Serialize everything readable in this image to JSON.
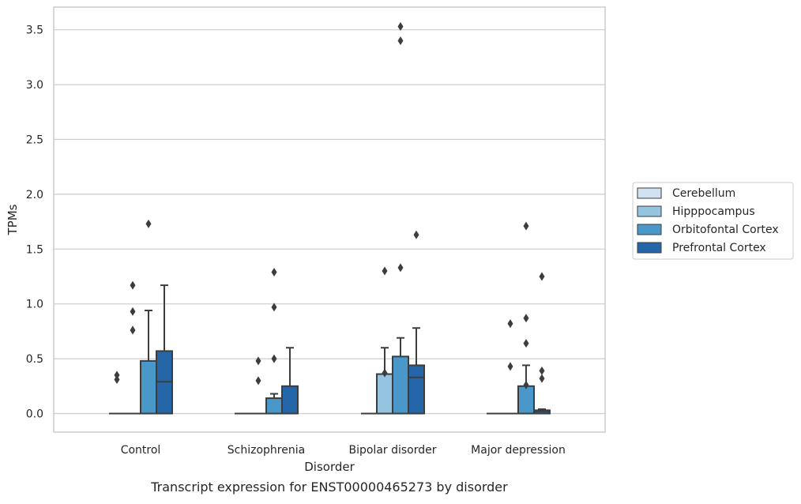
{
  "chart_data": {
    "type": "box",
    "title": "",
    "caption": "Transcript expression for ENST00000465273 by disorder",
    "xlabel": "Disorder",
    "ylabel": "TPMs",
    "ylim": [
      -0.17,
      3.72
    ],
    "yticks": [
      "0.0",
      "0.5",
      "1.0",
      "1.5",
      "2.0",
      "2.5",
      "3.0",
      "3.5"
    ],
    "grid": "horizontal",
    "legend_position": "right",
    "categories": [
      "Control",
      "Schizophrenia",
      "Bipolar disorder",
      "Major depression"
    ],
    "series": [
      {
        "name": "Cerebellum",
        "color": "#d0e1f2",
        "boxes": [
          {
            "q1": 0,
            "median": 0,
            "q3": 0,
            "whisker_low": 0,
            "whisker_high": 0,
            "outliers": [
              0.31,
              0.35
            ]
          },
          {
            "q1": 0,
            "median": 0,
            "q3": 0,
            "whisker_low": 0,
            "whisker_high": 0,
            "outliers": []
          },
          {
            "q1": 0,
            "median": 0,
            "q3": 0,
            "whisker_low": 0,
            "whisker_high": 0,
            "outliers": []
          },
          {
            "q1": 0,
            "median": 0,
            "q3": 0,
            "whisker_low": 0,
            "whisker_high": 0,
            "outliers": []
          }
        ]
      },
      {
        "name": "Hipppocampus",
        "color": "#94c4df",
        "boxes": [
          {
            "q1": 0,
            "median": 0,
            "q3": 0,
            "whisker_low": 0,
            "whisker_high": 0,
            "outliers": [
              0.76,
              0.93,
              1.17
            ]
          },
          {
            "q1": 0,
            "median": 0,
            "q3": 0,
            "whisker_low": 0,
            "whisker_high": 0,
            "outliers": [
              0.3,
              0.48
            ]
          },
          {
            "q1": 0,
            "median": 0,
            "q3": 0.36,
            "whisker_low": 0,
            "whisker_high": 0.6,
            "outliers": [
              0.37,
              1.3
            ]
          },
          {
            "q1": 0,
            "median": 0,
            "q3": 0,
            "whisker_low": 0,
            "whisker_high": 0,
            "outliers": [
              0.43,
              0.82
            ]
          }
        ]
      },
      {
        "name": "Orbitofontal Cortex",
        "color": "#4a98c9",
        "boxes": [
          {
            "q1": 0,
            "median": 0,
            "q3": 0.48,
            "whisker_low": 0,
            "whisker_high": 0.94,
            "outliers": [
              1.73
            ]
          },
          {
            "q1": 0,
            "median": 0,
            "q3": 0.14,
            "whisker_low": 0,
            "whisker_high": 0.18,
            "outliers": [
              0.5,
              0.97,
              1.29
            ]
          },
          {
            "q1": 0,
            "median": 0,
            "q3": 0.52,
            "whisker_low": 0,
            "whisker_high": 0.69,
            "outliers": [
              1.33,
              3.4,
              3.53
            ]
          },
          {
            "q1": 0,
            "median": 0,
            "q3": 0.25,
            "whisker_low": 0,
            "whisker_high": 0.44,
            "outliers": [
              0.26,
              0.64,
              0.87,
              1.71
            ]
          }
        ]
      },
      {
        "name": "Prefrontal Cortex",
        "color": "#2566a8",
        "boxes": [
          {
            "q1": 0,
            "median": 0.29,
            "q3": 0.57,
            "whisker_low": 0,
            "whisker_high": 1.17,
            "outliers": []
          },
          {
            "q1": 0,
            "median": 0,
            "q3": 0.25,
            "whisker_low": 0,
            "whisker_high": 0.6,
            "outliers": []
          },
          {
            "q1": 0,
            "median": 0.33,
            "q3": 0.44,
            "whisker_low": 0,
            "whisker_high": 0.78,
            "outliers": [
              1.63
            ]
          },
          {
            "q1": 0,
            "median": 0.02,
            "q3": 0.03,
            "whisker_low": 0,
            "whisker_high": 0.04,
            "outliers": [
              0.32,
              0.39,
              1.25
            ]
          }
        ]
      }
    ]
  }
}
